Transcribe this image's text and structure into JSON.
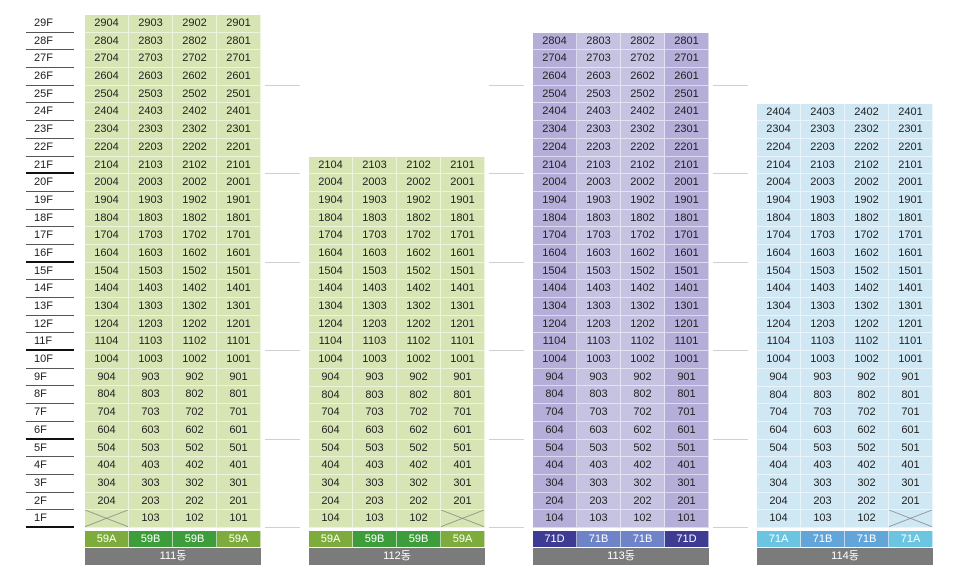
{
  "floors": [
    "29F",
    "28F",
    "27F",
    "26F",
    "25F",
    "24F",
    "23F",
    "22F",
    "21F",
    "20F",
    "19F",
    "18F",
    "17F",
    "16F",
    "15F",
    "14F",
    "13F",
    "12F",
    "11F",
    "10F",
    "9F",
    "8F",
    "7F",
    "6F",
    "5F",
    "4F",
    "3F",
    "2F",
    "1F"
  ],
  "buildings": [
    {
      "name": "111동",
      "top_floor": 29,
      "cell_color": "#d7e4b4",
      "column_types": [
        "59A",
        "59B",
        "59B",
        "59A"
      ],
      "type_colors": [
        "#7dab3c",
        "#3d9d3a",
        "#3d9d3a",
        "#7dab3c"
      ],
      "empty_1f": [
        0
      ],
      "rows": [
        [
          "2904",
          "2903",
          "2902",
          "2901"
        ],
        [
          "2804",
          "2803",
          "2802",
          "2801"
        ],
        [
          "2704",
          "2703",
          "2702",
          "2701"
        ],
        [
          "2604",
          "2603",
          "2602",
          "2601"
        ],
        [
          "2504",
          "2503",
          "2502",
          "2501"
        ],
        [
          "2404",
          "2403",
          "2402",
          "2401"
        ],
        [
          "2304",
          "2303",
          "2302",
          "2301"
        ],
        [
          "2204",
          "2203",
          "2202",
          "2201"
        ],
        [
          "2104",
          "2103",
          "2102",
          "2101"
        ],
        [
          "2004",
          "2003",
          "2002",
          "2001"
        ],
        [
          "1904",
          "1903",
          "1902",
          "1901"
        ],
        [
          "1804",
          "1803",
          "1802",
          "1801"
        ],
        [
          "1704",
          "1703",
          "1702",
          "1701"
        ],
        [
          "1604",
          "1603",
          "1602",
          "1601"
        ],
        [
          "1504",
          "1503",
          "1502",
          "1501"
        ],
        [
          "1404",
          "1403",
          "1402",
          "1401"
        ],
        [
          "1304",
          "1303",
          "1302",
          "1301"
        ],
        [
          "1204",
          "1203",
          "1202",
          "1201"
        ],
        [
          "1104",
          "1103",
          "1102",
          "1101"
        ],
        [
          "1004",
          "1003",
          "1002",
          "1001"
        ],
        [
          "904",
          "903",
          "902",
          "901"
        ],
        [
          "804",
          "803",
          "802",
          "801"
        ],
        [
          "704",
          "703",
          "702",
          "701"
        ],
        [
          "604",
          "603",
          "602",
          "601"
        ],
        [
          "504",
          "503",
          "502",
          "501"
        ],
        [
          "404",
          "403",
          "402",
          "401"
        ],
        [
          "304",
          "303",
          "302",
          "301"
        ],
        [
          "204",
          "203",
          "202",
          "201"
        ],
        [
          "",
          "103",
          "102",
          "101"
        ]
      ]
    },
    {
      "name": "112동",
      "top_floor": 21,
      "cell_color": "#d7e4b4",
      "column_types": [
        "59A",
        "59B",
        "59B",
        "59A"
      ],
      "type_colors": [
        "#7dab3c",
        "#3d9d3a",
        "#3d9d3a",
        "#7dab3c"
      ],
      "empty_1f": [
        3
      ],
      "rows": [
        [
          "2104",
          "2103",
          "2102",
          "2101"
        ],
        [
          "2004",
          "2003",
          "2002",
          "2001"
        ],
        [
          "1904",
          "1903",
          "1902",
          "1901"
        ],
        [
          "1804",
          "1803",
          "1802",
          "1801"
        ],
        [
          "1704",
          "1703",
          "1702",
          "1701"
        ],
        [
          "1604",
          "1603",
          "1602",
          "1601"
        ],
        [
          "1504",
          "1503",
          "1502",
          "1501"
        ],
        [
          "1404",
          "1403",
          "1402",
          "1401"
        ],
        [
          "1304",
          "1303",
          "1302",
          "1301"
        ],
        [
          "1204",
          "1203",
          "1202",
          "1201"
        ],
        [
          "1104",
          "1103",
          "1102",
          "1101"
        ],
        [
          "1004",
          "1003",
          "1002",
          "1001"
        ],
        [
          "904",
          "903",
          "902",
          "901"
        ],
        [
          "804",
          "803",
          "802",
          "801"
        ],
        [
          "704",
          "703",
          "702",
          "701"
        ],
        [
          "604",
          "603",
          "602",
          "601"
        ],
        [
          "504",
          "503",
          "502",
          "501"
        ],
        [
          "404",
          "403",
          "402",
          "401"
        ],
        [
          "304",
          "303",
          "302",
          "301"
        ],
        [
          "204",
          "203",
          "202",
          "201"
        ],
        [
          "104",
          "103",
          "102",
          ""
        ]
      ]
    },
    {
      "name": "113동",
      "top_floor": 28,
      "cell_color_outer": "#b4aed8",
      "cell_color": "#c6c2e2",
      "column_types": [
        "71D",
        "71B",
        "71B",
        "71D"
      ],
      "type_colors": [
        "#3e3b93",
        "#6f83c9",
        "#6f83c9",
        "#3e3b93"
      ],
      "empty_1f": [],
      "rows": [
        [
          "2804",
          "2803",
          "2802",
          "2801"
        ],
        [
          "2704",
          "2703",
          "2702",
          "2701"
        ],
        [
          "2604",
          "2603",
          "2602",
          "2601"
        ],
        [
          "2504",
          "2503",
          "2502",
          "2501"
        ],
        [
          "2404",
          "2403",
          "2402",
          "2401"
        ],
        [
          "2304",
          "2303",
          "2302",
          "2301"
        ],
        [
          "2204",
          "2203",
          "2202",
          "2201"
        ],
        [
          "2104",
          "2103",
          "2102",
          "2101"
        ],
        [
          "2004",
          "2003",
          "2002",
          "2001"
        ],
        [
          "1904",
          "1903",
          "1902",
          "1901"
        ],
        [
          "1804",
          "1803",
          "1802",
          "1801"
        ],
        [
          "1704",
          "1703",
          "1702",
          "1701"
        ],
        [
          "1604",
          "1603",
          "1602",
          "1601"
        ],
        [
          "1504",
          "1503",
          "1502",
          "1501"
        ],
        [
          "1404",
          "1403",
          "1402",
          "1401"
        ],
        [
          "1304",
          "1303",
          "1302",
          "1301"
        ],
        [
          "1204",
          "1203",
          "1202",
          "1201"
        ],
        [
          "1104",
          "1103",
          "1102",
          "1101"
        ],
        [
          "1004",
          "1003",
          "1002",
          "1001"
        ],
        [
          "904",
          "903",
          "902",
          "901"
        ],
        [
          "804",
          "803",
          "802",
          "801"
        ],
        [
          "704",
          "703",
          "702",
          "701"
        ],
        [
          "604",
          "603",
          "602",
          "601"
        ],
        [
          "504",
          "503",
          "502",
          "501"
        ],
        [
          "404",
          "403",
          "402",
          "401"
        ],
        [
          "304",
          "303",
          "302",
          "301"
        ],
        [
          "204",
          "203",
          "202",
          "201"
        ],
        [
          "104",
          "103",
          "102",
          "101"
        ]
      ]
    },
    {
      "name": "114동",
      "top_floor": 24,
      "cell_color": "#d0e7f4",
      "column_types": [
        "71A",
        "71B",
        "71B",
        "71A"
      ],
      "type_colors": [
        "#6cc5e0",
        "#62a6d9",
        "#62a6d9",
        "#6cc5e0"
      ],
      "empty_1f": [
        3
      ],
      "rows": [
        [
          "2404",
          "2403",
          "2402",
          "2401"
        ],
        [
          "2304",
          "2303",
          "2302",
          "2301"
        ],
        [
          "2204",
          "2203",
          "2202",
          "2201"
        ],
        [
          "2104",
          "2103",
          "2102",
          "2101"
        ],
        [
          "2004",
          "2003",
          "2002",
          "2001"
        ],
        [
          "1904",
          "1903",
          "1902",
          "1901"
        ],
        [
          "1804",
          "1803",
          "1802",
          "1801"
        ],
        [
          "1704",
          "1703",
          "1702",
          "1701"
        ],
        [
          "1604",
          "1603",
          "1602",
          "1601"
        ],
        [
          "1504",
          "1503",
          "1502",
          "1501"
        ],
        [
          "1404",
          "1403",
          "1402",
          "1401"
        ],
        [
          "1304",
          "1303",
          "1302",
          "1301"
        ],
        [
          "1204",
          "1203",
          "1202",
          "1201"
        ],
        [
          "1104",
          "1103",
          "1102",
          "1101"
        ],
        [
          "1004",
          "1003",
          "1002",
          "1001"
        ],
        [
          "904",
          "903",
          "902",
          "901"
        ],
        [
          "804",
          "803",
          "802",
          "801"
        ],
        [
          "704",
          "703",
          "702",
          "701"
        ],
        [
          "604",
          "603",
          "602",
          "601"
        ],
        [
          "504",
          "503",
          "502",
          "501"
        ],
        [
          "404",
          "403",
          "402",
          "401"
        ],
        [
          "304",
          "303",
          "302",
          "301"
        ],
        [
          "204",
          "203",
          "202",
          "201"
        ],
        [
          "104",
          "103",
          "102",
          ""
        ]
      ]
    }
  ]
}
